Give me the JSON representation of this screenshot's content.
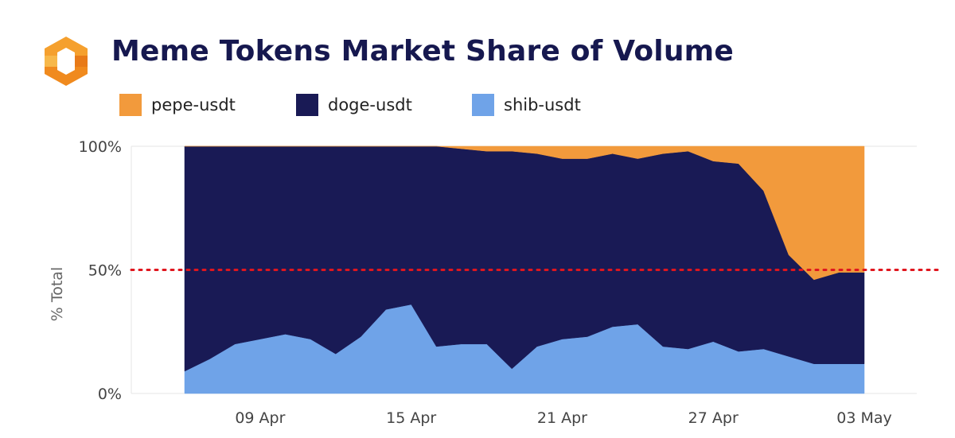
{
  "title": "Meme Tokens Market Share of Volume",
  "colors": {
    "pepe": "#f29a3c",
    "doge": "#191a55",
    "shib": "#6fa3e8",
    "reference_line": "#e0161e",
    "title": "#16184f"
  },
  "legend": [
    {
      "label": "pepe-usdt",
      "color": "#f29a3c"
    },
    {
      "label": "doge-usdt",
      "color": "#191a55"
    },
    {
      "label": "shib-usdt",
      "color": "#6fa3e8"
    }
  ],
  "chart_data": {
    "type": "area",
    "stacked": true,
    "normalized": true,
    "title": "Meme Tokens Market Share of Volume",
    "ylabel": "% Total",
    "xlabel": "",
    "ylim": [
      0,
      100
    ],
    "y_ticks": [
      "0%",
      "50%",
      "100%"
    ],
    "x_ticks": [
      "09 Apr",
      "15 Apr",
      "21 Apr",
      "27 Apr",
      "03 May"
    ],
    "reference_line": {
      "y": 50,
      "style": "dotted",
      "color": "#e0161e"
    },
    "grid": true,
    "legend_position": "top-left",
    "x": [
      "06 Apr",
      "07 Apr",
      "08 Apr",
      "09 Apr",
      "10 Apr",
      "11 Apr",
      "12 Apr",
      "13 Apr",
      "14 Apr",
      "15 Apr",
      "16 Apr",
      "17 Apr",
      "18 Apr",
      "19 Apr",
      "20 Apr",
      "21 Apr",
      "22 Apr",
      "23 Apr",
      "24 Apr",
      "25 Apr",
      "26 Apr",
      "27 Apr",
      "28 Apr",
      "29 Apr",
      "30 Apr",
      "01 May",
      "02 May",
      "03 May"
    ],
    "series": [
      {
        "name": "shib-usdt",
        "color": "#6fa3e8",
        "values": [
          9,
          14,
          20,
          22,
          24,
          22,
          16,
          23,
          34,
          36,
          19,
          20,
          20,
          10,
          19,
          22,
          23,
          27,
          28,
          19,
          18,
          21,
          17,
          18,
          15,
          12,
          12,
          12
        ]
      },
      {
        "name": "doge-usdt",
        "color": "#191a55",
        "values": [
          91,
          86,
          80,
          78,
          76,
          78,
          84,
          77,
          66,
          64,
          81,
          79,
          78,
          88,
          78,
          73,
          72,
          70,
          67,
          78,
          80,
          73,
          76,
          64,
          41,
          34,
          37,
          37
        ]
      },
      {
        "name": "pepe-usdt",
        "color": "#f29a3c",
        "values": [
          0,
          0,
          0,
          0,
          0,
          0,
          0,
          0,
          0,
          0,
          0,
          1,
          2,
          2,
          3,
          5,
          5,
          3,
          5,
          3,
          2,
          6,
          7,
          18,
          44,
          54,
          51,
          51
        ]
      }
    ]
  }
}
